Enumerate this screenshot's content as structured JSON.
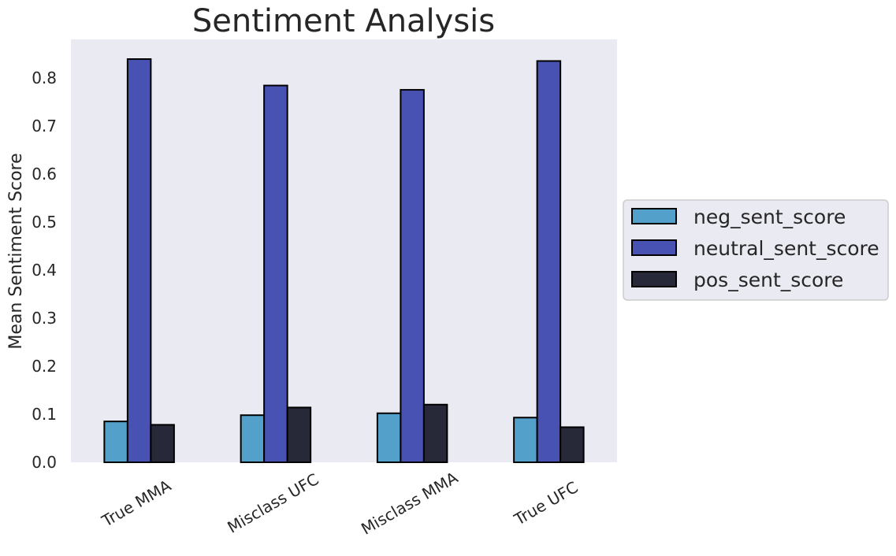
{
  "chart_data": {
    "type": "bar",
    "title": "Sentiment Analysis",
    "xlabel": "",
    "ylabel": "Mean Sentiment Score",
    "categories": [
      "True MMA",
      "Misclass UFC",
      "Misclass MMA",
      "True UFC"
    ],
    "series": [
      {
        "name": "neg_sent_score",
        "values": [
          0.085,
          0.098,
          0.102,
          0.093
        ],
        "color": "#53a1cb"
      },
      {
        "name": "neutral_sent_score",
        "values": [
          0.839,
          0.784,
          0.775,
          0.835
        ],
        "color": "#4852b3"
      },
      {
        "name": "pos_sent_score",
        "values": [
          0.078,
          0.114,
          0.12,
          0.073
        ],
        "color": "#272838"
      }
    ],
    "ylim": [
      0,
      0.88
    ],
    "yticks": [
      0.0,
      0.1,
      0.2,
      0.3,
      0.4,
      0.5,
      0.6,
      0.7,
      0.8
    ],
    "ytick_labels": [
      "0.0",
      "0.1",
      "0.2",
      "0.3",
      "0.4",
      "0.5",
      "0.6",
      "0.7",
      "0.8"
    ],
    "grid": false,
    "legend_position": "center-right outside",
    "plot_background": "#eaeaf2",
    "bar_edge_color": "#000000"
  }
}
